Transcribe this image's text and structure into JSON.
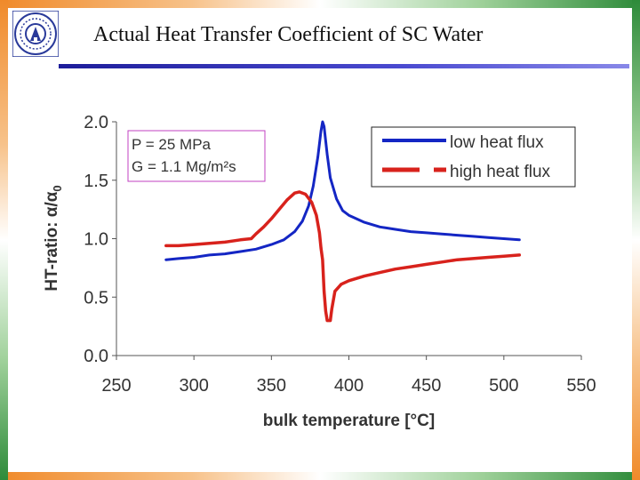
{
  "slide": {
    "title": "Actual Heat Transfer Coefficient of SC Water",
    "logo_name": "institute-seal"
  },
  "colors": {
    "blue_series": "#1426c4",
    "red_series": "#d8221c",
    "annotation_border": "#c040c0",
    "rule": "#3a3ab8"
  },
  "chart_data": {
    "type": "line",
    "title": "",
    "xlabel": "bulk temperature [°C]",
    "ylabel_prefix": "HT-ratio: ",
    "ylabel_symbol": "α/α",
    "ylabel_subscript": "0",
    "xlim": [
      250,
      550
    ],
    "ylim": [
      0.0,
      2.0
    ],
    "xticks": [
      "250",
      "300",
      "350",
      "400",
      "450",
      "500",
      "550"
    ],
    "yticks": [
      "0.0",
      "0.5",
      "1.0",
      "1.5",
      "2.0"
    ],
    "xtick_values": [
      250,
      300,
      350,
      400,
      450,
      500,
      550
    ],
    "ytick_values": [
      0.0,
      0.5,
      1.0,
      1.5,
      2.0
    ],
    "annotation": {
      "line1": "P = 25 MPa",
      "line2": "G = 1.1 Mg/m²s"
    },
    "legend": {
      "placement": "top-right",
      "entries": [
        "low heat flux",
        "high heat flux"
      ]
    },
    "series": [
      {
        "name": "low heat flux",
        "style": "solid",
        "points": [
          [
            282,
            0.82
          ],
          [
            290,
            0.83
          ],
          [
            300,
            0.84
          ],
          [
            310,
            0.86
          ],
          [
            320,
            0.87
          ],
          [
            330,
            0.89
          ],
          [
            340,
            0.91
          ],
          [
            350,
            0.95
          ],
          [
            358,
            0.99
          ],
          [
            365,
            1.06
          ],
          [
            370,
            1.15
          ],
          [
            374,
            1.28
          ],
          [
            377,
            1.45
          ],
          [
            380,
            1.7
          ],
          [
            382,
            1.92
          ],
          [
            383,
            2.0
          ],
          [
            384,
            1.96
          ],
          [
            386,
            1.72
          ],
          [
            388,
            1.52
          ],
          [
            392,
            1.34
          ],
          [
            396,
            1.24
          ],
          [
            400,
            1.2
          ],
          [
            410,
            1.14
          ],
          [
            420,
            1.1
          ],
          [
            430,
            1.08
          ],
          [
            440,
            1.06
          ],
          [
            450,
            1.05
          ],
          [
            460,
            1.04
          ],
          [
            470,
            1.03
          ],
          [
            480,
            1.02
          ],
          [
            490,
            1.01
          ],
          [
            500,
            1.0
          ],
          [
            510,
            0.99
          ]
        ]
      },
      {
        "name": "high heat flux",
        "style": "dashed",
        "points": [
          [
            282,
            0.94
          ],
          [
            290,
            0.94
          ],
          [
            300,
            0.95
          ],
          [
            310,
            0.96
          ],
          [
            320,
            0.97
          ],
          [
            330,
            0.99
          ],
          [
            337,
            1.0
          ],
          [
            340,
            1.04
          ],
          [
            345,
            1.1
          ],
          [
            350,
            1.17
          ],
          [
            355,
            1.25
          ],
          [
            360,
            1.33
          ],
          [
            365,
            1.39
          ],
          [
            368,
            1.4
          ],
          [
            372,
            1.38
          ],
          [
            376,
            1.31
          ],
          [
            379,
            1.2
          ],
          [
            381,
            1.05
          ],
          [
            382,
            0.92
          ],
          [
            383,
            0.82
          ],
          [
            384,
            0.55
          ],
          [
            385,
            0.38
          ],
          [
            386,
            0.3
          ],
          [
            388,
            0.3
          ],
          [
            389,
            0.4
          ],
          [
            391,
            0.55
          ],
          [
            395,
            0.61
          ],
          [
            400,
            0.64
          ],
          [
            410,
            0.68
          ],
          [
            420,
            0.71
          ],
          [
            430,
            0.74
          ],
          [
            440,
            0.76
          ],
          [
            450,
            0.78
          ],
          [
            460,
            0.8
          ],
          [
            470,
            0.82
          ],
          [
            480,
            0.83
          ],
          [
            490,
            0.84
          ],
          [
            500,
            0.85
          ],
          [
            510,
            0.86
          ]
        ]
      }
    ]
  }
}
